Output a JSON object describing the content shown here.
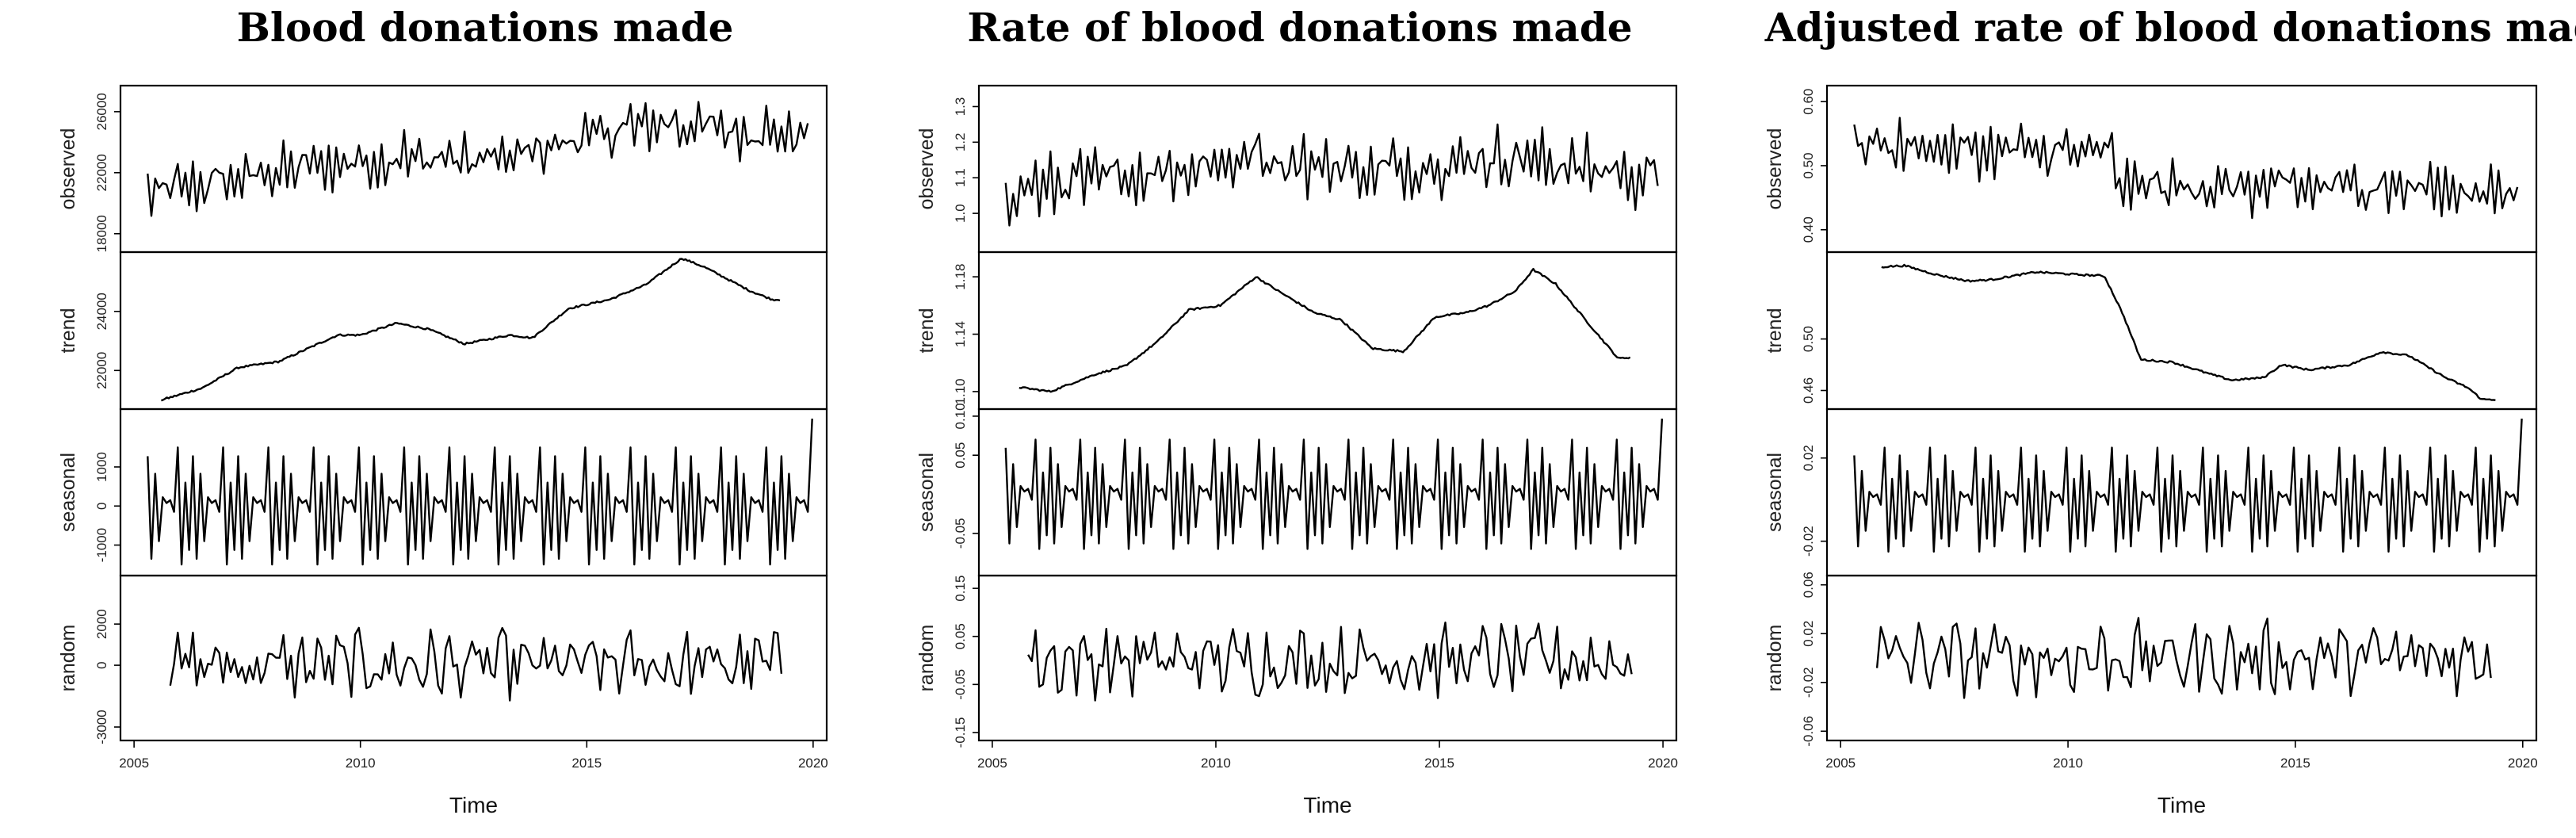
{
  "chart_data": [
    {
      "type": "line",
      "title": "Blood donations made",
      "xlabel": "Time",
      "xlim": [
        2004.7,
        2020.3
      ],
      "xticks": [
        "2005",
        "2010",
        "2015",
        "2020"
      ],
      "panels": [
        {
          "name": "observed",
          "ylabel": "observed",
          "ylim": [
            17000,
            27500
          ],
          "ticks": [
            "18000",
            "22000",
            "26000"
          ],
          "kind": "observed",
          "base": [
            [
              2005.3,
              20600
            ],
            [
              2007,
              21500
            ],
            [
              2009,
              22500
            ],
            [
              2011,
              23000
            ],
            [
              2013,
              22800
            ],
            [
              2014.5,
              24000
            ],
            [
              2016.5,
              25300
            ],
            [
              2019.9,
              24400
            ]
          ],
          "amp": 2200
        },
        {
          "name": "trend",
          "ylabel": "trend",
          "ylim": [
            20800,
            25900
          ],
          "ticks": [
            "22000",
            "24000"
          ],
          "kind": "trend",
          "points": [
            [
              2005.6,
              21000
            ],
            [
              2006.5,
              21400
            ],
            [
              2007.3,
              22100
            ],
            [
              2008.2,
              22300
            ],
            [
              2009.5,
              23200
            ],
            [
              2010,
              23200
            ],
            [
              2010.8,
              23600
            ],
            [
              2011.5,
              23400
            ],
            [
              2012.3,
              22900
            ],
            [
              2013.3,
              23200
            ],
            [
              2013.8,
              23100
            ],
            [
              2014.6,
              24100
            ],
            [
              2015.5,
              24400
            ],
            [
              2016.3,
              24900
            ],
            [
              2017.1,
              25800
            ],
            [
              2017.6,
              25500
            ],
            [
              2018.6,
              24700
            ],
            [
              2019.1,
              24400
            ],
            [
              2019.3,
              24400
            ]
          ]
        },
        {
          "name": "seasonal",
          "ylabel": "seasonal",
          "ylim": [
            -1700,
            2400
          ],
          "ticks": [
            "-1000",
            "0",
            "1000"
          ],
          "kind": "seasonal",
          "amp": 1500
        },
        {
          "name": "random",
          "ylabel": "random",
          "ylim": [
            -3500,
            4200
          ],
          "ticks": [
            "-3000",
            "0",
            "2000"
          ],
          "kind": "random",
          "amp": 1600
        }
      ]
    },
    {
      "type": "line",
      "title": "Rate of blood donations made",
      "xlabel": "Time",
      "xlim": [
        2004.7,
        2020.3
      ],
      "xticks": [
        "2005",
        "2010",
        "2015",
        "2020"
      ],
      "panels": [
        {
          "name": "observed",
          "ylabel": "observed",
          "ylim": [
            0.9,
            1.35
          ],
          "ticks": [
            "1.0",
            "1.1",
            "1.2",
            "1.3"
          ],
          "kind": "observed",
          "base": [
            [
              2005.3,
              1.06
            ],
            [
              2008,
              1.11
            ],
            [
              2011,
              1.16
            ],
            [
              2013.5,
              1.12
            ],
            [
              2016.5,
              1.16
            ],
            [
              2019.9,
              1.1
            ]
          ],
          "amp": 0.11
        },
        {
          "name": "trend",
          "ylabel": "trend",
          "ylim": [
            1.09,
            1.195
          ],
          "ticks": [
            "1.10",
            "1.14",
            "1.18"
          ],
          "kind": "trend",
          "points": [
            [
              2005.6,
              1.103
            ],
            [
              2006.3,
              1.1
            ],
            [
              2007.3,
              1.112
            ],
            [
              2008,
              1.118
            ],
            [
              2008.7,
              1.135
            ],
            [
              2009.4,
              1.157
            ],
            [
              2010.1,
              1.16
            ],
            [
              2010.9,
              1.18
            ],
            [
              2011.4,
              1.17
            ],
            [
              2012.2,
              1.155
            ],
            [
              2012.8,
              1.15
            ],
            [
              2013.5,
              1.13
            ],
            [
              2014.2,
              1.128
            ],
            [
              2014.9,
              1.152
            ],
            [
              2015.6,
              1.155
            ],
            [
              2016.1,
              1.16
            ],
            [
              2016.7,
              1.17
            ],
            [
              2017.1,
              1.185
            ],
            [
              2017.6,
              1.175
            ],
            [
              2018.4,
              1.145
            ],
            [
              2019,
              1.123
            ],
            [
              2019.3,
              1.124
            ]
          ]
        },
        {
          "name": "seasonal",
          "ylabel": "seasonal",
          "ylim": [
            -0.1,
            0.105
          ],
          "ticks": [
            "-0.05",
            "0.05",
            "0.10"
          ],
          "kind": "seasonal",
          "amp": 0.07
        },
        {
          "name": "random",
          "ylabel": "random",
          "ylim": [
            -0.16,
            0.17
          ],
          "ticks": [
            "-0.15",
            "-0.05",
            "0.05",
            "0.15"
          ],
          "kind": "random",
          "amp": 0.07
        }
      ]
    },
    {
      "type": "line",
      "title": "Adjusted rate of blood donations made",
      "xlabel": "Time",
      "xlim": [
        2004.7,
        2020.3
      ],
      "xticks": [
        "2005",
        "2010",
        "2015",
        "2020"
      ],
      "panels": [
        {
          "name": "observed",
          "ylabel": "observed",
          "ylim": [
            0.37,
            0.62
          ],
          "ticks": [
            "0.40",
            "0.50",
            "0.60"
          ],
          "kind": "observed",
          "base": [
            [
              2005.3,
              0.535
            ],
            [
              2008,
              0.525
            ],
            [
              2010.9,
              0.52
            ],
            [
              2011.2,
              0.47
            ],
            [
              2014,
              0.465
            ],
            [
              2017,
              0.47
            ],
            [
              2019.9,
              0.455
            ]
          ],
          "amp": 0.05
        },
        {
          "name": "trend",
          "ylabel": "trend",
          "ylim": [
            0.448,
            0.565
          ],
          "ticks": [
            "0.46",
            "0.50"
          ],
          "kind": "trend",
          "points": [
            [
              2005.9,
              0.556
            ],
            [
              2006.4,
              0.557
            ],
            [
              2007.1,
              0.55
            ],
            [
              2007.8,
              0.545
            ],
            [
              2008.3,
              0.546
            ],
            [
              2009.3,
              0.552
            ],
            [
              2010.2,
              0.55
            ],
            [
              2010.8,
              0.549
            ],
            [
              2011.2,
              0.52
            ],
            [
              2011.6,
              0.484
            ],
            [
              2012.3,
              0.482
            ],
            [
              2013.1,
              0.473
            ],
            [
              2013.6,
              0.468
            ],
            [
              2014.3,
              0.47
            ],
            [
              2014.7,
              0.48
            ],
            [
              2015.3,
              0.476
            ],
            [
              2016.2,
              0.48
            ],
            [
              2016.9,
              0.49
            ],
            [
              2017.5,
              0.487
            ],
            [
              2018.3,
              0.47
            ],
            [
              2018.8,
              0.462
            ],
            [
              2019.1,
              0.453
            ],
            [
              2019.4,
              0.453
            ]
          ]
        },
        {
          "name": "seasonal",
          "ylabel": "seasonal",
          "ylim": [
            -0.035,
            0.042
          ],
          "ticks": [
            "-0.02",
            "0.02"
          ],
          "kind": "seasonal",
          "amp": 0.025
        },
        {
          "name": "random",
          "ylabel": "random",
          "ylim": [
            -0.065,
            0.065
          ],
          "ticks": [
            "-0.06",
            "-0.02",
            "0.02",
            "0.06"
          ],
          "kind": "random",
          "amp": 0.028
        }
      ]
    }
  ]
}
